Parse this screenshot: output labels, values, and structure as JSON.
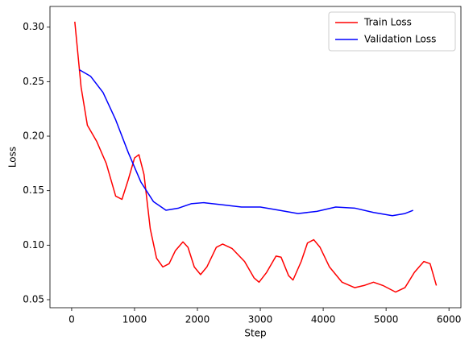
{
  "chart_data": {
    "type": "line",
    "xlabel": "Step",
    "ylabel": "Loss",
    "series": [
      {
        "name": "Train Loss",
        "color": "#ff0000",
        "x": [
          50,
          150,
          250,
          400,
          550,
          700,
          800,
          900,
          1000,
          1070,
          1150,
          1250,
          1350,
          1450,
          1550,
          1650,
          1770,
          1850,
          1950,
          2050,
          2150,
          2300,
          2400,
          2550,
          2750,
          2900,
          2980,
          3100,
          3250,
          3330,
          3450,
          3520,
          3650,
          3750,
          3850,
          3950,
          4100,
          4300,
          4500,
          4650,
          4800,
          4950,
          5150,
          5300,
          5450,
          5600,
          5700,
          5800
        ],
        "values": [
          0.305,
          0.245,
          0.21,
          0.195,
          0.175,
          0.145,
          0.142,
          0.16,
          0.18,
          0.183,
          0.165,
          0.115,
          0.088,
          0.08,
          0.083,
          0.095,
          0.103,
          0.098,
          0.08,
          0.073,
          0.08,
          0.098,
          0.101,
          0.097,
          0.085,
          0.07,
          0.066,
          0.075,
          0.09,
          0.089,
          0.072,
          0.068,
          0.085,
          0.102,
          0.105,
          0.098,
          0.08,
          0.066,
          0.061,
          0.063,
          0.066,
          0.063,
          0.057,
          0.061,
          0.075,
          0.085,
          0.083,
          0.063
        ]
      },
      {
        "name": "Validation Loss",
        "color": "#0000ff",
        "x": [
          120,
          300,
          500,
          700,
          900,
          1100,
          1300,
          1500,
          1700,
          1900,
          2100,
          2400,
          2700,
          3000,
          3300,
          3600,
          3900,
          4200,
          4500,
          4800,
          5100,
          5300,
          5430
        ],
        "values": [
          0.261,
          0.255,
          0.24,
          0.215,
          0.185,
          0.158,
          0.14,
          0.132,
          0.134,
          0.138,
          0.139,
          0.137,
          0.135,
          0.135,
          0.132,
          0.129,
          0.131,
          0.135,
          0.134,
          0.13,
          0.127,
          0.129,
          0.132
        ]
      }
    ],
    "xlim": [
      -345,
      6190
    ],
    "xticks": [
      0,
      1000,
      2000,
      3000,
      4000,
      5000,
      6000
    ],
    "ylim": [
      0.0426,
      0.319
    ],
    "yticks": [
      {
        "value": 0.05,
        "label": "0.05"
      },
      {
        "value": 0.1,
        "label": "0.10"
      },
      0.15,
      {
        "value": 0.2,
        "label": "0.20"
      },
      0.25,
      {
        "value": 0.3,
        "label": "0.30"
      }
    ],
    "legend": "upper right"
  }
}
